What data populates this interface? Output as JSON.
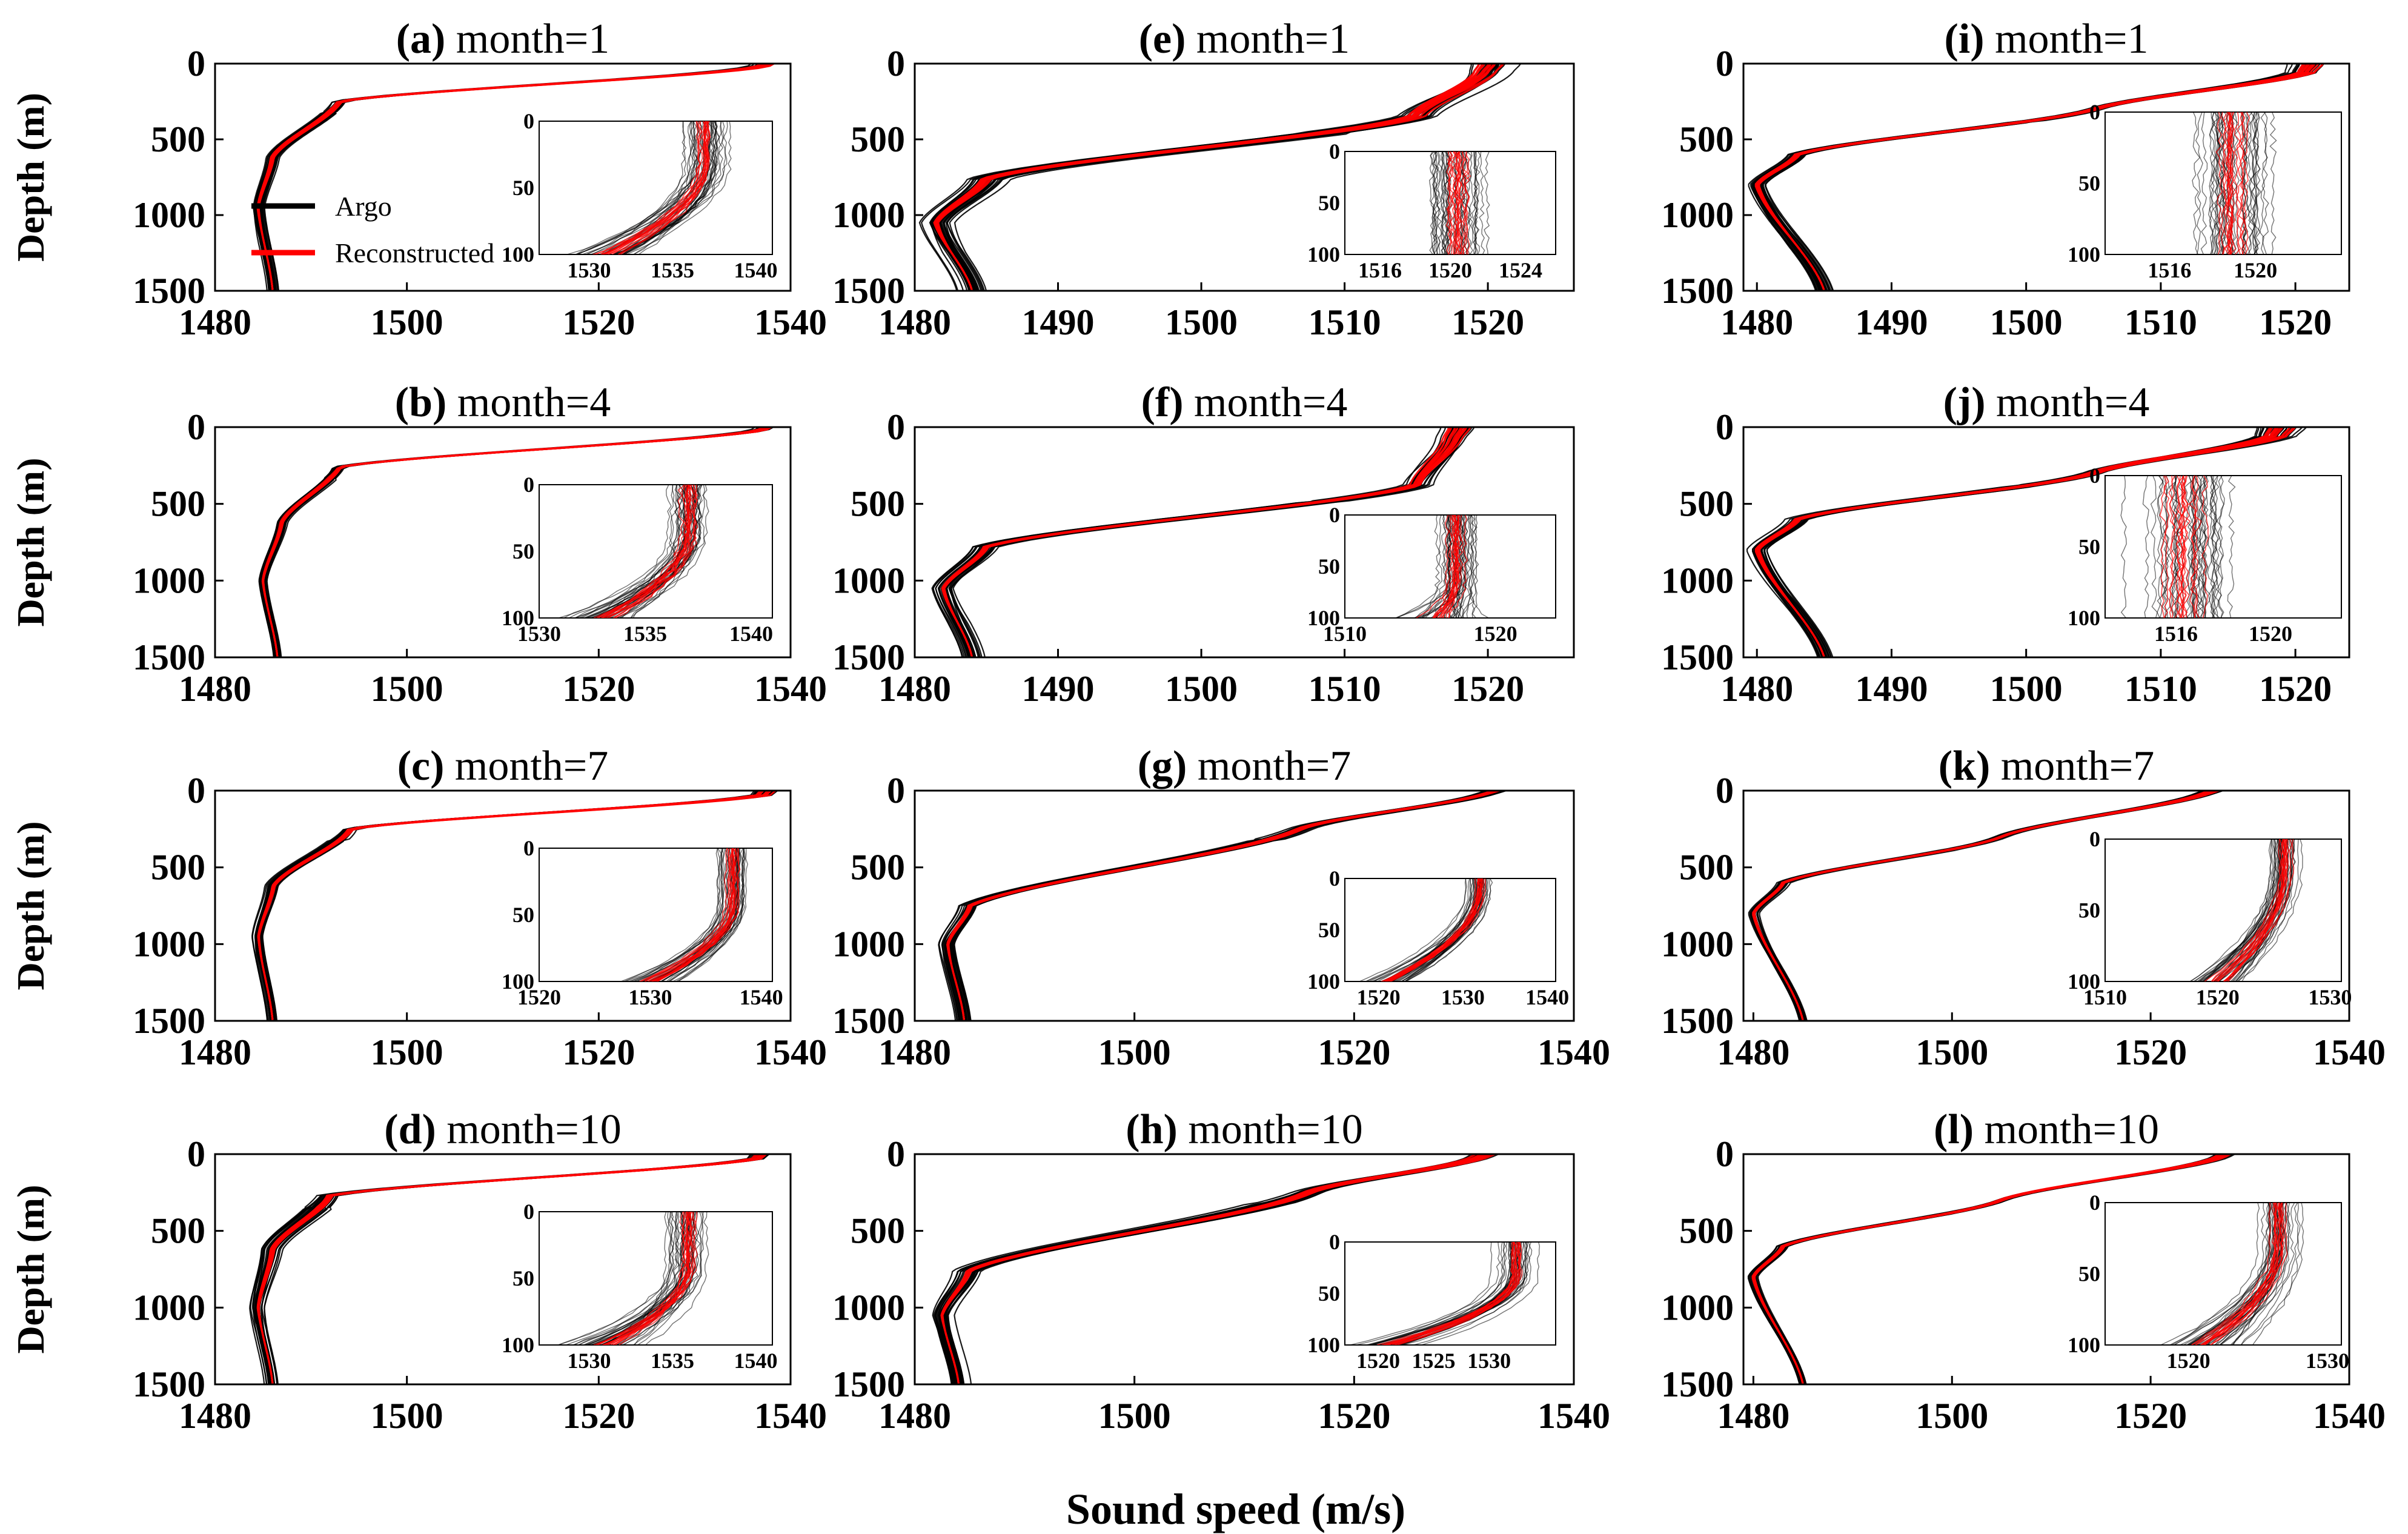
{
  "figure": {
    "xlabel": "Sound speed (m/s)",
    "ylabel": "Depth (m)",
    "colors": {
      "argo": "#000000",
      "reconstructed": "#ff0000"
    },
    "legend": {
      "location": "panel-a-center-left",
      "items": [
        "Argo",
        "Reconstructed"
      ]
    }
  },
  "chart_data": [
    {
      "id": "a",
      "type": "line",
      "tag": "(a)",
      "title": "month=1",
      "xlim": [
        1480,
        1540
      ],
      "xticks": [
        1480,
        1500,
        1520,
        1540
      ],
      "ylim": [
        0,
        1500
      ],
      "yticks": [
        0,
        500,
        1000,
        1500
      ],
      "inset": {
        "xlim": [
          1527,
          1541
        ],
        "xticks": [
          1530,
          1535,
          1540
        ],
        "ylim": [
          0,
          100
        ],
        "yticks": [
          0,
          50,
          100
        ]
      },
      "profile": {
        "surface": 1537.5,
        "mix_depth": 20,
        "thermo_speed": 1493,
        "thermo_depth": 250,
        "knee_speed": 1486,
        "knee_depth": 620,
        "min_speed": 1484.5,
        "min_depth": 950,
        "bottom_speed": 1486,
        "spread": 0.9,
        "surf_spread": 1.2
      },
      "inset_profile": {
        "ref": 1537.0,
        "base": 1531,
        "start": 30,
        "spread": 1.3
      },
      "series": [
        {
          "name": "Argo",
          "values_desc": "profiles"
        },
        {
          "name": "Reconstructed",
          "values_desc": "profiles"
        }
      ]
    },
    {
      "id": "b",
      "type": "line",
      "tag": "(b)",
      "title": "month=4",
      "xlim": [
        1480,
        1540
      ],
      "xticks": [
        1480,
        1500,
        1520,
        1540
      ],
      "ylim": [
        0,
        1500
      ],
      "yticks": [
        0,
        500,
        1000,
        1500
      ],
      "inset": {
        "xlim": [
          1530,
          1541
        ],
        "xticks": [
          1530,
          1535,
          1540
        ],
        "ylim": [
          0,
          100
        ],
        "yticks": [
          0,
          50,
          100
        ]
      },
      "profile": {
        "surface": 1537.5,
        "mix_depth": 20,
        "thermo_speed": 1493,
        "thermo_depth": 260,
        "knee_speed": 1487,
        "knee_depth": 620,
        "min_speed": 1485,
        "min_depth": 1000,
        "bottom_speed": 1486.5,
        "spread": 0.7,
        "surf_spread": 1.0
      },
      "inset_profile": {
        "ref": 1537.0,
        "base": 1533,
        "start": 35,
        "spread": 1.0
      }
    },
    {
      "id": "c",
      "type": "line",
      "tag": "(c)",
      "title": "month=7",
      "xlim": [
        1480,
        1540
      ],
      "xticks": [
        1480,
        1500,
        1520,
        1540
      ],
      "ylim": [
        0,
        1500
      ],
      "yticks": [
        0,
        500,
        1000,
        1500
      ],
      "inset": {
        "xlim": [
          1520,
          1541
        ],
        "xticks": [
          1520,
          1530,
          1540
        ],
        "ylim": [
          0,
          100
        ],
        "yticks": [
          0,
          50,
          100
        ]
      },
      "profile": {
        "surface": 1537.5,
        "mix_depth": 30,
        "thermo_speed": 1494,
        "thermo_depth": 250,
        "knee_speed": 1486,
        "knee_depth": 620,
        "min_speed": 1484.5,
        "min_depth": 950,
        "bottom_speed": 1486,
        "spread": 0.8,
        "surf_spread": 1.2
      },
      "inset_profile": {
        "ref": 1537.5,
        "base": 1530,
        "start": 40,
        "spread": 1.5
      }
    },
    {
      "id": "d",
      "type": "line",
      "tag": "(d)",
      "title": "month=10",
      "xlim": [
        1480,
        1540
      ],
      "xticks": [
        1480,
        1500,
        1520,
        1540
      ],
      "ylim": [
        0,
        1500
      ],
      "yticks": [
        0,
        500,
        1000,
        1500
      ],
      "inset": {
        "xlim": [
          1527,
          1541
        ],
        "xticks": [
          1530,
          1535,
          1540
        ],
        "ylim": [
          0,
          100
        ],
        "yticks": [
          0,
          50,
          100
        ]
      },
      "profile": {
        "surface": 1537.0,
        "mix_depth": 30,
        "thermo_speed": 1492,
        "thermo_depth": 270,
        "knee_speed": 1486,
        "knee_depth": 620,
        "min_speed": 1484.5,
        "min_depth": 1000,
        "bottom_speed": 1486,
        "spread": 1.2,
        "surf_spread": 1.2
      },
      "inset_profile": {
        "ref": 1536.0,
        "base": 1531,
        "start": 40,
        "spread": 1.3
      }
    },
    {
      "id": "e",
      "type": "line",
      "tag": "(e)",
      "title": "month=1",
      "xlim": [
        1480,
        1526
      ],
      "xticks": [
        1480,
        1490,
        1500,
        1510,
        1520
      ],
      "ylim": [
        0,
        1500
      ],
      "yticks": [
        0,
        500,
        1000,
        1500
      ],
      "inset": {
        "xlim": [
          1514,
          1526
        ],
        "xticks": [
          1516,
          1520,
          1524
        ],
        "ylim": [
          0,
          100
        ],
        "yticks": [
          0,
          50,
          100
        ]
      },
      "profile": {
        "surface": 1520.5,
        "mix_depth": 60,
        "thermo_speed": 1515,
        "thermo_depth": 350,
        "knee_speed": 1485,
        "knee_depth": 760,
        "min_speed": 1481.5,
        "min_depth": 1050,
        "bottom_speed": 1484,
        "spread": 1.6,
        "surf_spread": 1.8
      },
      "inset_profile": {
        "ref": 1520.5,
        "base": 1520.5,
        "start": 100,
        "spread": 1.8
      }
    },
    {
      "id": "f",
      "type": "line",
      "tag": "(f)",
      "title": "month=4",
      "xlim": [
        1480,
        1526
      ],
      "xticks": [
        1480,
        1490,
        1500,
        1510,
        1520
      ],
      "ylim": [
        0,
        1500
      ],
      "yticks": [
        0,
        500,
        1000,
        1500
      ],
      "inset": {
        "xlim": [
          1510,
          1524
        ],
        "xticks": [
          1510,
          1520
        ],
        "ylim": [
          0,
          100
        ],
        "yticks": [
          0,
          50,
          100
        ]
      },
      "profile": {
        "surface": 1518.0,
        "mix_depth": 80,
        "thermo_speed": 1515,
        "thermo_depth": 380,
        "knee_speed": 1485,
        "knee_depth": 780,
        "min_speed": 1482,
        "min_depth": 1050,
        "bottom_speed": 1484,
        "spread": 1.0,
        "surf_spread": 1.3
      },
      "inset_profile": {
        "ref": 1517.5,
        "base": 1516.5,
        "start": 60,
        "spread": 1.6
      }
    },
    {
      "id": "g",
      "type": "line",
      "tag": "(g)",
      "title": "month=7",
      "xlim": [
        1480,
        1540
      ],
      "xticks": [
        1480,
        1500,
        1520,
        1540
      ],
      "ylim": [
        0,
        1500
      ],
      "yticks": [
        0,
        500,
        1000,
        1500
      ],
      "inset": {
        "xlim": [
          1516,
          1541
        ],
        "xticks": [
          1520,
          1530,
          1540
        ],
        "ylim": [
          0,
          100
        ],
        "yticks": [
          0,
          50,
          100
        ]
      },
      "profile": {
        "surface": 1533.0,
        "mix_depth": 10,
        "thermo_speed": 1515,
        "thermo_depth": 250,
        "knee_speed": 1485,
        "knee_depth": 750,
        "min_speed": 1483,
        "min_depth": 1000,
        "bottom_speed": 1484.5,
        "spread": 1.2,
        "surf_spread": 1.0
      },
      "inset_profile": {
        "ref": 1532.0,
        "base": 1521,
        "start": 10,
        "spread": 1.6
      }
    },
    {
      "id": "h",
      "type": "line",
      "tag": "(h)",
      "title": "month=10",
      "xlim": [
        1480,
        1540
      ],
      "xticks": [
        1480,
        1500,
        1520,
        1540
      ],
      "ylim": [
        0,
        1500
      ],
      "yticks": [
        0,
        500,
        1000,
        1500
      ],
      "inset": {
        "xlim": [
          1517,
          1536
        ],
        "xticks": [
          1520,
          1525,
          1530
        ],
        "ylim": [
          0,
          100
        ],
        "yticks": [
          0,
          50,
          100
        ]
      },
      "profile": {
        "surface": 1532.0,
        "mix_depth": 20,
        "thermo_speed": 1516,
        "thermo_depth": 250,
        "knee_speed": 1485,
        "knee_depth": 760,
        "min_speed": 1482.5,
        "min_depth": 1050,
        "bottom_speed": 1484,
        "spread": 1.8,
        "surf_spread": 1.2
      },
      "inset_profile": {
        "ref": 1532.5,
        "base": 1521,
        "start": 30,
        "spread": 1.8
      }
    },
    {
      "id": "i",
      "type": "line",
      "tag": "(i)",
      "title": "month=1",
      "xlim": [
        1479,
        1524
      ],
      "xticks": [
        1480,
        1490,
        1500,
        1510,
        1520
      ],
      "ylim": [
        0,
        1500
      ],
      "yticks": [
        0,
        500,
        1000,
        1500
      ],
      "inset": {
        "xlim": [
          1513,
          1524
        ],
        "xticks": [
          1516,
          1520
        ],
        "ylim": [
          0,
          100
        ],
        "yticks": [
          0,
          50,
          100
        ]
      },
      "profile": {
        "surface": 1521.0,
        "mix_depth": 60,
        "thermo_speed": 1505,
        "thermo_depth": 300,
        "knee_speed": 1483,
        "knee_depth": 600,
        "min_speed": 1480,
        "min_depth": 800,
        "bottom_speed": 1485,
        "spread": 0.9,
        "surf_spread": 1.6
      },
      "inset_profile": {
        "ref": 1519.0,
        "base": 1519,
        "start": 100,
        "spread": 1.6
      }
    },
    {
      "id": "j",
      "type": "line",
      "tag": "(j)",
      "title": "month=4",
      "xlim": [
        1479,
        1524
      ],
      "xticks": [
        1480,
        1490,
        1500,
        1510,
        1520
      ],
      "ylim": [
        0,
        1500
      ],
      "yticks": [
        0,
        500,
        1000,
        1500
      ],
      "inset": {
        "xlim": [
          1513,
          1523
        ],
        "xticks": [
          1516,
          1520
        ],
        "ylim": [
          0,
          100
        ],
        "yticks": [
          0,
          50,
          100
        ]
      },
      "profile": {
        "surface": 1519.0,
        "mix_depth": 60,
        "thermo_speed": 1505,
        "thermo_depth": 300,
        "knee_speed": 1483,
        "knee_depth": 600,
        "min_speed": 1480,
        "min_depth": 800,
        "bottom_speed": 1485,
        "spread": 0.9,
        "surf_spread": 1.8
      },
      "inset_profile": {
        "ref": 1516.5,
        "base": 1516.5,
        "start": 100,
        "spread": 2.0
      }
    },
    {
      "id": "k",
      "type": "line",
      "tag": "(k)",
      "title": "month=7",
      "xlim": [
        1479,
        1540
      ],
      "xticks": [
        1480,
        1500,
        1520,
        1540
      ],
      "ylim": [
        0,
        1500
      ],
      "yticks": [
        0,
        500,
        1000,
        1500
      ],
      "inset": {
        "xlim": [
          1510,
          1531
        ],
        "xticks": [
          1510,
          1520,
          1530
        ],
        "ylim": [
          0,
          100
        ],
        "yticks": [
          0,
          50,
          100
        ]
      },
      "profile": {
        "surface": 1526.5,
        "mix_depth": 10,
        "thermo_speed": 1505,
        "thermo_depth": 300,
        "knee_speed": 1483,
        "knee_depth": 600,
        "min_speed": 1480,
        "min_depth": 800,
        "bottom_speed": 1485,
        "spread": 0.7,
        "surf_spread": 1.0
      },
      "inset_profile": {
        "ref": 1526.0,
        "base": 1520,
        "start": 20,
        "spread": 1.5
      }
    },
    {
      "id": "l",
      "type": "line",
      "tag": "(l)",
      "title": "month=10",
      "xlim": [
        1479,
        1540
      ],
      "xticks": [
        1480,
        1500,
        1520,
        1540
      ],
      "ylim": [
        0,
        1500
      ],
      "yticks": [
        0,
        500,
        1000,
        1500
      ],
      "inset": {
        "xlim": [
          1514,
          1531
        ],
        "xticks": [
          1520,
          1530
        ],
        "ylim": [
          0,
          100
        ],
        "yticks": [
          0,
          50,
          100
        ]
      },
      "profile": {
        "surface": 1527.5,
        "mix_depth": 20,
        "thermo_speed": 1505,
        "thermo_depth": 300,
        "knee_speed": 1483,
        "knee_depth": 600,
        "min_speed": 1480,
        "min_depth": 800,
        "bottom_speed": 1485,
        "spread": 0.7,
        "surf_spread": 1.0
      },
      "inset_profile": {
        "ref": 1526.5,
        "base": 1521,
        "start": 30,
        "spread": 1.5
      }
    }
  ]
}
